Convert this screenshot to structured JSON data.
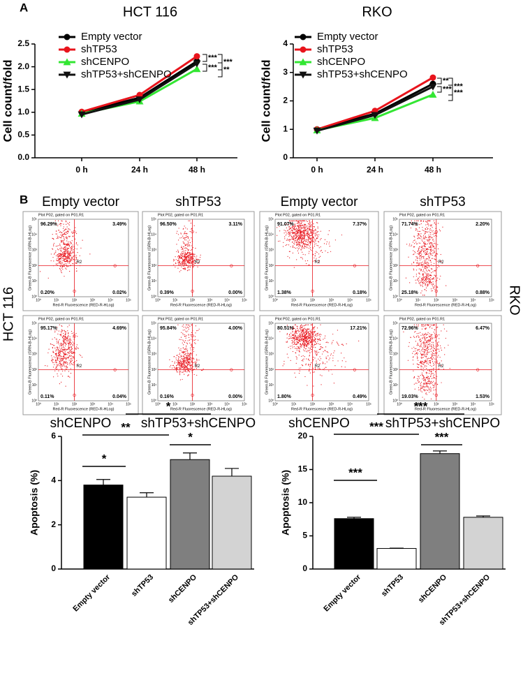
{
  "panel_labels": [
    "A",
    "B"
  ],
  "chart_data": [
    {
      "type": "line",
      "title": "HCT 116",
      "y_label": "Cell count/fold",
      "categories": [
        "0 h",
        "24 h",
        "48 h"
      ],
      "ylim": [
        0,
        2.5
      ],
      "yticks": [
        {
          "value": 0,
          "label": "0.0"
        },
        0.5,
        {
          "value": 1,
          "label": "1.0"
        },
        1.5,
        {
          "value": 2,
          "label": "2.0"
        },
        2.5
      ],
      "series": [
        {
          "name": "Empty vector",
          "color": "#000000",
          "marker": "circle",
          "values": [
            1.0,
            1.32,
            2.12
          ]
        },
        {
          "name": "shTP53",
          "color": "#e8141c",
          "marker": "circle",
          "values": [
            1.01,
            1.38,
            2.23
          ]
        },
        {
          "name": "shCENPO",
          "color": "#33e633",
          "marker": "triangle-up",
          "values": [
            0.97,
            1.24,
            1.95
          ]
        },
        {
          "name": "shTP53+shCENPO",
          "color": "#111111",
          "marker": "triangle-down",
          "values": [
            0.95,
            1.28,
            2.07
          ]
        }
      ],
      "annotations": [
        "***",
        "***",
        "***",
        "**"
      ]
    },
    {
      "type": "line",
      "title": "RKO",
      "y_label": "Cell count/fold",
      "categories": [
        "0 h",
        "24 h",
        "48 h"
      ],
      "ylim": [
        0,
        4
      ],
      "yticks": [
        0,
        1,
        2,
        3,
        4
      ],
      "series": [
        {
          "name": "Empty vector",
          "color": "#000000",
          "marker": "circle",
          "values": [
            1.0,
            1.55,
            2.6
          ]
        },
        {
          "name": "shTP53",
          "color": "#e8141c",
          "marker": "circle",
          "values": [
            1.0,
            1.65,
            2.82
          ]
        },
        {
          "name": "shCENPO",
          "color": "#33e633",
          "marker": "triangle-up",
          "values": [
            0.97,
            1.4,
            2.22
          ]
        },
        {
          "name": "shTP53+shCENPO",
          "color": "#111111",
          "marker": "triangle-down",
          "values": [
            0.95,
            1.5,
            2.5
          ]
        }
      ],
      "annotations": [
        "**",
        "***",
        "***",
        "***"
      ]
    },
    {
      "type": "bar",
      "y_label": "Apoptosis (%)",
      "categories": [
        "Empty vector",
        "shTP53",
        "shCENPO",
        "shTP53+shCENPO"
      ],
      "values": [
        3.8,
        3.25,
        4.95,
        4.2
      ],
      "errors": [
        0.25,
        0.2,
        0.3,
        0.35
      ],
      "colors": [
        "#000000",
        "#ffffff",
        "#7f7f7f",
        "#d3d3d3"
      ],
      "ylim": [
        0,
        6
      ],
      "yticks": [
        0,
        2,
        4,
        6
      ],
      "annotations": [
        "*",
        "**",
        "*",
        "*"
      ]
    },
    {
      "type": "bar",
      "y_label": "Apoptosis (%)",
      "categories": [
        "Empty vector",
        "shTP53",
        "shCENPO",
        "shTP53+shCENPO"
      ],
      "values": [
        7.6,
        3.1,
        17.4,
        7.8
      ],
      "errors": [
        0.2,
        0.05,
        0.4,
        0.2
      ],
      "colors": [
        "#000000",
        "#ffffff",
        "#7f7f7f",
        "#d3d3d3"
      ],
      "ylim": [
        0,
        20
      ],
      "yticks": [
        0,
        5,
        10,
        15,
        20
      ],
      "annotations": [
        "***",
        "***",
        "***",
        "***"
      ]
    }
  ],
  "flow": {
    "plot_title": "Plot P02, gated on P01.R1",
    "x_label": "Red-R Fluorescence (RED-R-HLog)",
    "y_label": "Green-B Fluorescence (GRN-B-HLog)",
    "gate_label": "R2",
    "ticks": [
      "10⁰",
      "10¹",
      "10²",
      "10³",
      "10⁴",
      "10⁵"
    ],
    "cell_lines": [
      {
        "name": "HCT 116",
        "panels": [
          {
            "caption": "Empty vector",
            "quadrants": [
              "96.29%",
              "3.49%",
              "0.20%",
              "0.02%"
            ]
          },
          {
            "caption": "shTP53",
            "quadrants": [
              "96.50%",
              "3.11%",
              "0.39%",
              "0.00%"
            ]
          },
          {
            "caption": "shCENPO",
            "quadrants": [
              "95.17%",
              "4.69%",
              "0.11%",
              "0.04%"
            ]
          },
          {
            "caption": "shTP53+shCENPO",
            "quadrants": [
              "95.84%",
              "4.00%",
              "0.16%",
              "0.00%"
            ]
          }
        ]
      },
      {
        "name": "RKO",
        "panels": [
          {
            "caption": "Empty vector",
            "quadrants": [
              "91.07%",
              "7.37%",
              "1.38%",
              "0.18%"
            ]
          },
          {
            "caption": "shTP53",
            "quadrants": [
              "71.74%",
              "2.20%",
              "25.18%",
              "0.88%"
            ]
          },
          {
            "caption": "shCENPO",
            "quadrants": [
              "80.51%",
              "17.21%",
              "1.80%",
              "0.49%"
            ]
          },
          {
            "caption": "shTP53+shCENPO",
            "quadrants": [
              "72.96%",
              "6.47%",
              "19.03%",
              "1.53%"
            ]
          }
        ]
      }
    ]
  }
}
